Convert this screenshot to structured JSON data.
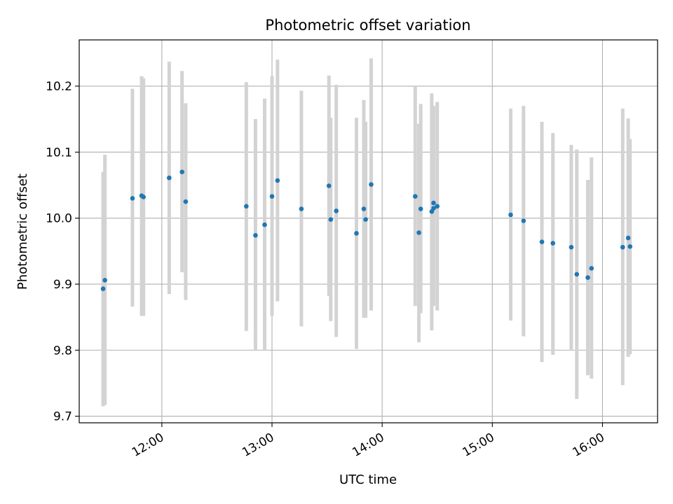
{
  "chart_data": {
    "type": "scatter",
    "title": "Photometric offset variation",
    "xlabel": "UTC time",
    "ylabel": "Photometric offset",
    "x_axis": "time",
    "x_range": [
      "11:15",
      "16:30"
    ],
    "ylim": [
      9.69,
      10.27
    ],
    "x_ticks": [
      "12:00",
      "13:00",
      "14:00",
      "15:00",
      "16:00"
    ],
    "y_ticks": [
      9.7,
      9.8,
      9.9,
      10.0,
      10.1,
      10.2
    ],
    "y_tick_labels": [
      "9.7",
      "9.8",
      "9.9",
      "10.0",
      "10.1",
      "10.2"
    ],
    "grid": true,
    "point_color": "#1f77b4",
    "errorbar_color": "#d3d3d3",
    "series": [
      {
        "points": [
          {
            "x": "11:28",
            "y": 9.893,
            "err_low": 9.715,
            "err_high": 10.07
          },
          {
            "x": "11:29",
            "y": 9.906,
            "err_low": 9.717,
            "err_high": 10.096
          },
          {
            "x": "11:44",
            "y": 10.03,
            "err_low": 9.866,
            "err_high": 10.196
          },
          {
            "x": "11:49",
            "y": 10.034,
            "err_low": 9.852,
            "err_high": 10.215
          },
          {
            "x": "11:50",
            "y": 10.032,
            "err_low": 9.852,
            "err_high": 10.212
          },
          {
            "x": "12:04",
            "y": 10.061,
            "err_low": 9.885,
            "err_high": 10.237
          },
          {
            "x": "12:11",
            "y": 10.07,
            "err_low": 9.918,
            "err_high": 10.223
          },
          {
            "x": "12:13",
            "y": 10.025,
            "err_low": 9.876,
            "err_high": 10.174
          },
          {
            "x": "12:46",
            "y": 10.018,
            "err_low": 9.829,
            "err_high": 10.206
          },
          {
            "x": "12:51",
            "y": 9.974,
            "err_low": 9.8,
            "err_high": 10.15
          },
          {
            "x": "12:56",
            "y": 9.99,
            "err_low": 9.8,
            "err_high": 10.181
          },
          {
            "x": "13:00",
            "y": 10.033,
            "err_low": 9.852,
            "err_high": 10.215
          },
          {
            "x": "13:03",
            "y": 10.057,
            "err_low": 9.874,
            "err_high": 10.24
          },
          {
            "x": "13:16",
            "y": 10.014,
            "err_low": 9.836,
            "err_high": 10.193
          },
          {
            "x": "13:31",
            "y": 10.049,
            "err_low": 9.882,
            "err_high": 10.216
          },
          {
            "x": "13:32",
            "y": 9.998,
            "err_low": 9.844,
            "err_high": 10.152
          },
          {
            "x": "13:35",
            "y": 10.011,
            "err_low": 9.82,
            "err_high": 10.202
          },
          {
            "x": "13:46",
            "y": 9.977,
            "err_low": 9.802,
            "err_high": 10.152
          },
          {
            "x": "13:50",
            "y": 10.014,
            "err_low": 9.849,
            "err_high": 10.179
          },
          {
            "x": "13:51",
            "y": 9.998,
            "err_low": 9.849,
            "err_high": 10.146
          },
          {
            "x": "13:54",
            "y": 10.051,
            "err_low": 9.86,
            "err_high": 10.242
          },
          {
            "x": "14:18",
            "y": 10.033,
            "err_low": 9.867,
            "err_high": 10.199
          },
          {
            "x": "14:20",
            "y": 9.978,
            "err_low": 9.812,
            "err_high": 10.143
          },
          {
            "x": "14:21",
            "y": 10.014,
            "err_low": 9.856,
            "err_high": 10.173
          },
          {
            "x": "14:27",
            "y": 10.01,
            "err_low": 9.83,
            "err_high": 10.189
          },
          {
            "x": "14:28",
            "y": 10.015,
            "err_low": 9.867,
            "err_high": 10.165
          },
          {
            "x": "14:28",
            "y": 10.023,
            "err_low": 9.875,
            "err_high": 10.17
          },
          {
            "x": "14:30",
            "y": 10.018,
            "err_low": 9.86,
            "err_high": 10.176
          },
          {
            "x": "15:10",
            "y": 10.005,
            "err_low": 9.845,
            "err_high": 10.166
          },
          {
            "x": "15:17",
            "y": 9.996,
            "err_low": 9.821,
            "err_high": 10.17
          },
          {
            "x": "15:27",
            "y": 9.964,
            "err_low": 9.782,
            "err_high": 10.146
          },
          {
            "x": "15:33",
            "y": 9.962,
            "err_low": 9.793,
            "err_high": 10.129
          },
          {
            "x": "15:43",
            "y": 9.956,
            "err_low": 9.801,
            "err_high": 10.111
          },
          {
            "x": "15:46",
            "y": 9.915,
            "err_low": 9.726,
            "err_high": 10.104
          },
          {
            "x": "15:52",
            "y": 9.91,
            "err_low": 9.762,
            "err_high": 10.058
          },
          {
            "x": "15:54",
            "y": 9.924,
            "err_low": 9.757,
            "err_high": 10.092
          },
          {
            "x": "16:11",
            "y": 9.956,
            "err_low": 9.747,
            "err_high": 10.166
          },
          {
            "x": "16:14",
            "y": 9.97,
            "err_low": 9.79,
            "err_high": 10.151
          },
          {
            "x": "16:15",
            "y": 9.957,
            "err_low": 9.794,
            "err_high": 10.12
          }
        ]
      }
    ]
  }
}
